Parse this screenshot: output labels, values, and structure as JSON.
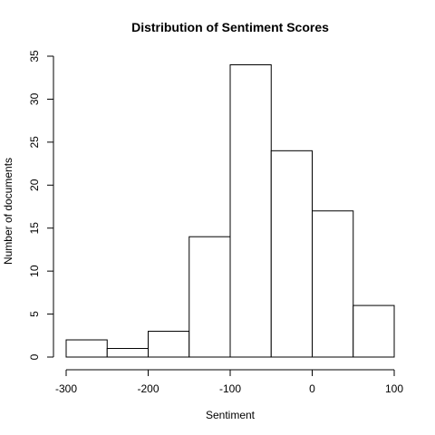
{
  "chart_data": {
    "type": "bar",
    "subtype": "histogram",
    "title": "Distribution of Sentiment Scores",
    "xlabel": "Sentiment",
    "ylabel": "Number of documents",
    "bins": [
      {
        "start": -300,
        "end": -250,
        "count": 2
      },
      {
        "start": -250,
        "end": -200,
        "count": 1
      },
      {
        "start": -200,
        "end": -150,
        "count": 3
      },
      {
        "start": -150,
        "end": -100,
        "count": 14
      },
      {
        "start": -100,
        "end": -50,
        "count": 34
      },
      {
        "start": -50,
        "end": 0,
        "count": 24
      },
      {
        "start": 0,
        "end": 50,
        "count": 17
      },
      {
        "start": 50,
        "end": 100,
        "count": 6
      }
    ],
    "xlim": [
      -300,
      100
    ],
    "ylim": [
      0,
      35
    ],
    "xticks": [
      -300,
      -200,
      -100,
      0,
      100
    ],
    "yticks": [
      0,
      5,
      10,
      15,
      20,
      25,
      30,
      35
    ],
    "grid": false,
    "legend": "none"
  }
}
